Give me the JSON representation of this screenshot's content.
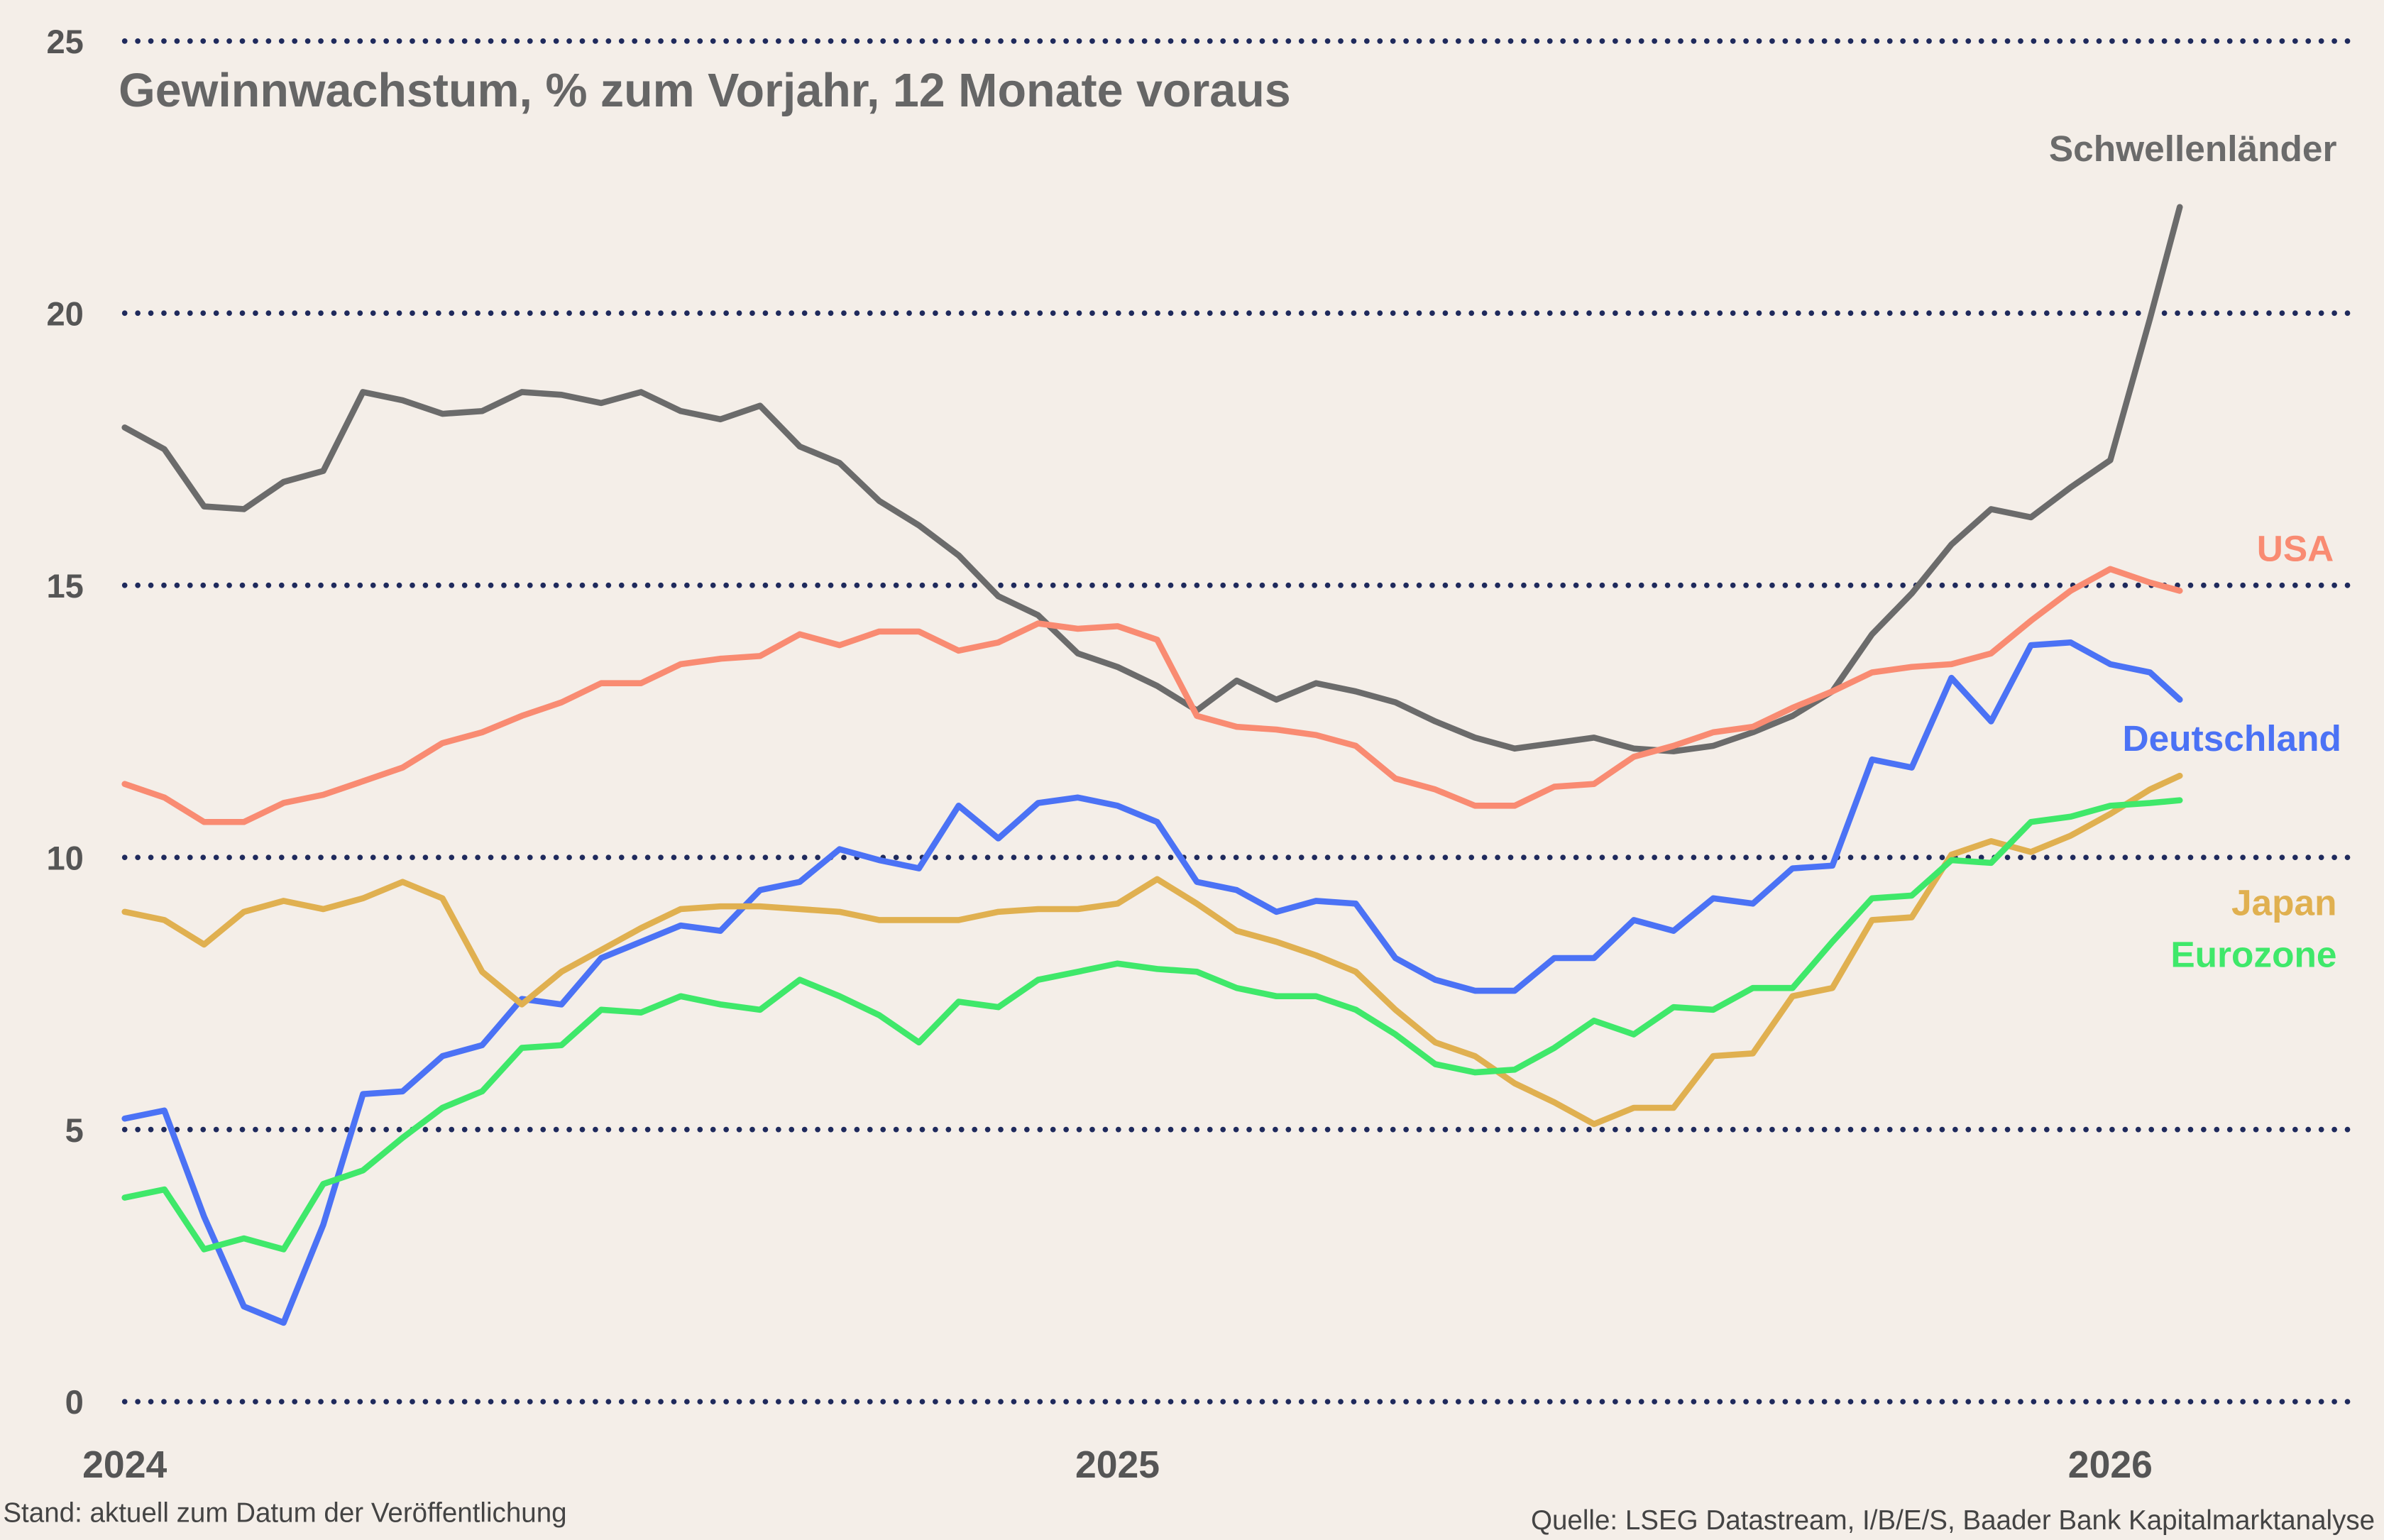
{
  "chart_data": {
    "type": "line",
    "title": "Gewinnwachstum, % zum Vorjahr, 12 Monate voraus",
    "xlabel": "",
    "ylabel": "",
    "xlim": [
      2024.0,
      2026.2
    ],
    "ylim": [
      0,
      25
    ],
    "y_ticks": [
      0,
      5,
      10,
      15,
      20,
      25
    ],
    "x_ticks": [
      {
        "value": 2024,
        "label": "2024"
      },
      {
        "value": 2025,
        "label": "2025"
      },
      {
        "value": 2026,
        "label": "2026"
      }
    ],
    "grid": "horizontal dotted",
    "legend": "inline labels at right end of lines",
    "grid_color": "#1f2a5c",
    "background": "#f4eee8",
    "x": [
      2024.0,
      2024.04,
      2024.08,
      2024.12,
      2024.16,
      2024.2,
      2024.24,
      2024.28,
      2024.32,
      2024.36,
      2024.4,
      2024.44,
      2024.48,
      2024.52,
      2024.56,
      2024.6,
      2024.64,
      2024.68,
      2024.72,
      2024.76,
      2024.8,
      2024.84,
      2024.88,
      2024.92,
      2024.96,
      2025.0,
      2025.04,
      2025.08,
      2025.12,
      2025.16,
      2025.2,
      2025.24,
      2025.28,
      2025.32,
      2025.36,
      2025.4,
      2025.44,
      2025.48,
      2025.52,
      2025.56,
      2025.6,
      2025.64,
      2025.68,
      2025.72,
      2025.76,
      2025.8,
      2025.84,
      2025.88,
      2025.92,
      2025.96,
      2026.0,
      2026.04,
      2026.07
    ],
    "series": [
      {
        "name": "Schwellenländer",
        "color": "#6b6b6b",
        "values": [
          17.9,
          17.5,
          16.45,
          16.4,
          16.9,
          17.1,
          18.55,
          18.4,
          18.15,
          18.2,
          18.55,
          18.5,
          18.35,
          18.55,
          18.2,
          18.05,
          18.3,
          17.55,
          17.25,
          16.55,
          16.1,
          15.55,
          14.8,
          14.45,
          13.75,
          13.5,
          13.15,
          12.7,
          13.25,
          12.9,
          13.2,
          13.05,
          12.85,
          12.5,
          12.2,
          12.0,
          12.1,
          12.2,
          12.0,
          11.95,
          12.05,
          12.3,
          12.6,
          13.05,
          14.1,
          14.85,
          15.75,
          16.4,
          16.25,
          16.8,
          17.3,
          19.9,
          21.95
        ]
      },
      {
        "name": "USA",
        "color": "#f98b72",
        "values": [
          11.35,
          11.1,
          10.65,
          10.65,
          11.0,
          11.15,
          11.4,
          11.65,
          12.1,
          12.3,
          12.6,
          12.85,
          13.2,
          13.2,
          13.55,
          13.65,
          13.7,
          14.1,
          13.9,
          14.15,
          14.15,
          13.8,
          13.95,
          14.3,
          14.2,
          14.25,
          14.0,
          12.6,
          12.4,
          12.35,
          12.25,
          12.05,
          11.45,
          11.25,
          10.95,
          10.95,
          11.3,
          11.35,
          11.85,
          12.05,
          12.3,
          12.4,
          12.75,
          13.05,
          13.4,
          13.5,
          13.55,
          13.75,
          14.35,
          14.9,
          15.3,
          15.05,
          14.9
        ]
      },
      {
        "name": "Deutschland",
        "color": "#4b72f5",
        "values": [
          5.2,
          5.35,
          3.4,
          1.75,
          1.45,
          3.25,
          5.65,
          5.7,
          6.35,
          6.55,
          7.4,
          7.3,
          8.15,
          8.45,
          8.75,
          8.65,
          9.4,
          9.55,
          10.15,
          9.95,
          9.8,
          10.95,
          10.35,
          11.0,
          11.1,
          10.95,
          10.65,
          9.55,
          9.4,
          9.0,
          9.2,
          9.15,
          8.15,
          7.75,
          7.55,
          7.55,
          8.15,
          8.15,
          8.85,
          8.65,
          9.25,
          9.15,
          9.8,
          9.85,
          11.8,
          11.65,
          13.3,
          12.5,
          13.9,
          13.95,
          13.55,
          13.4,
          12.9
        ]
      },
      {
        "name": "Japan",
        "color": "#e0b050",
        "values": [
          9.0,
          8.85,
          8.4,
          9.0,
          9.2,
          9.05,
          9.25,
          9.55,
          9.25,
          7.9,
          7.3,
          7.9,
          8.3,
          8.7,
          9.05,
          9.1,
          9.1,
          9.05,
          9.0,
          8.85,
          8.85,
          8.85,
          9.0,
          9.05,
          9.05,
          9.15,
          9.6,
          9.15,
          8.65,
          8.45,
          8.2,
          7.9,
          7.2,
          6.6,
          6.35,
          5.85,
          5.5,
          5.1,
          5.4,
          5.4,
          6.35,
          6.4,
          7.45,
          7.6,
          8.85,
          8.9,
          10.05,
          10.3,
          10.1,
          10.4,
          10.8,
          11.25,
          11.5
        ]
      },
      {
        "name": "Eurozone",
        "color": "#3fe86a",
        "values": [
          3.75,
          3.9,
          2.8,
          3.0,
          2.8,
          4.0,
          4.25,
          4.85,
          5.4,
          5.7,
          6.5,
          6.55,
          7.2,
          7.15,
          7.45,
          7.3,
          7.2,
          7.75,
          7.45,
          7.1,
          6.6,
          7.35,
          7.25,
          7.75,
          7.9,
          8.05,
          7.95,
          7.9,
          7.6,
          7.45,
          7.45,
          7.2,
          6.75,
          6.2,
          6.05,
          6.1,
          6.5,
          7.0,
          6.75,
          7.25,
          7.2,
          7.6,
          7.6,
          8.45,
          9.25,
          9.3,
          9.95,
          9.9,
          10.65,
          10.75,
          10.95,
          11.0,
          11.05
        ]
      }
    ]
  },
  "footer": {
    "left": "Stand: aktuell zum Datum der Veröffentlichung",
    "right": "Quelle: LSEG Datastream, I/B/E/S, Baader Bank Kapitalmarktanalyse"
  }
}
